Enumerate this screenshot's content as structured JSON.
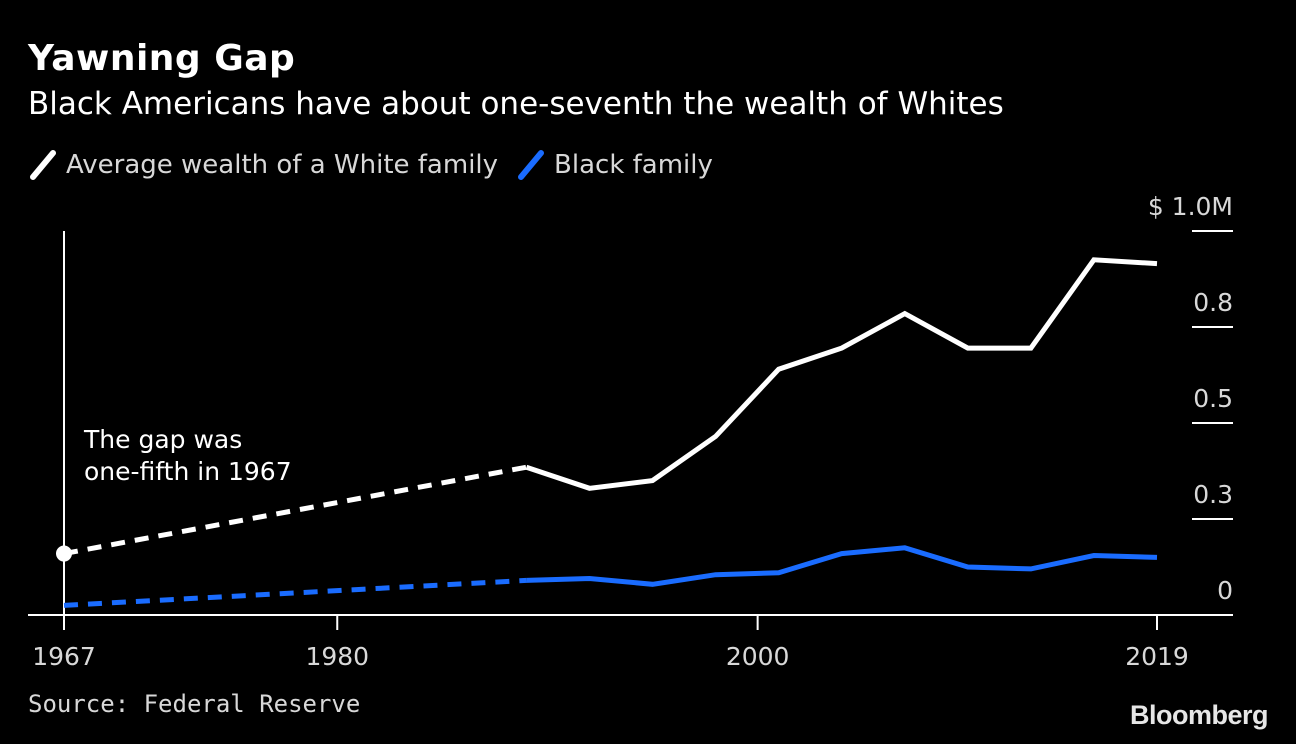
{
  "header": {
    "title": "Yawning Gap",
    "subtitle": "Black Americans have about one-seventh the wealth of Whites"
  },
  "legend": [
    {
      "label": "Average wealth of a White family",
      "color": "#ffffff"
    },
    {
      "label": "Black family",
      "color": "#1a6cff"
    }
  ],
  "footer": {
    "source": "Source: Federal Reserve",
    "brand": "Bloomberg"
  },
  "annotation": {
    "line1": "The gap was",
    "line2": "one-fifth in 1967"
  },
  "chart_data": {
    "type": "line",
    "title": "Yawning Gap",
    "subtitle": "Black Americans have about one-seventh the wealth of Whites",
    "xlabel": "",
    "ylabel": "",
    "xlim": [
      1967,
      2021
    ],
    "ylim": [
      0,
      1.0
    ],
    "x_ticks": [
      {
        "value": 1967,
        "label": "1967"
      },
      {
        "value": 1980,
        "label": "1980"
      },
      {
        "value": 2000,
        "label": "2000"
      },
      {
        "value": 2019,
        "label": "2019"
      }
    ],
    "y_ticks": [
      {
        "value": 0,
        "label": "0"
      },
      {
        "value": 0.25,
        "label": "0.3"
      },
      {
        "value": 0.5,
        "label": "0.5"
      },
      {
        "value": 0.75,
        "label": "0.8"
      },
      {
        "value": 1.0,
        "label": "$ 1.0M"
      }
    ],
    "grid": false,
    "y_axis_side": "right",
    "legend_position": "top-left",
    "series": [
      {
        "name": "Average wealth of a White family",
        "color": "#ffffff",
        "dashed_until": 1989,
        "points": [
          {
            "x": 1967,
            "y": 0.16
          },
          {
            "x": 1989,
            "y": 0.385
          },
          {
            "x": 1992,
            "y": 0.33
          },
          {
            "x": 1995,
            "y": 0.35
          },
          {
            "x": 1998,
            "y": 0.465
          },
          {
            "x": 2001,
            "y": 0.64
          },
          {
            "x": 2004,
            "y": 0.695
          },
          {
            "x": 2007,
            "y": 0.785
          },
          {
            "x": 2010,
            "y": 0.695
          },
          {
            "x": 2013,
            "y": 0.695
          },
          {
            "x": 2016,
            "y": 0.925
          },
          {
            "x": 2019,
            "y": 0.915
          }
        ]
      },
      {
        "name": "Black family",
        "color": "#1a6cff",
        "dashed_until": 1989,
        "points": [
          {
            "x": 1967,
            "y": 0.025
          },
          {
            "x": 1989,
            "y": 0.09
          },
          {
            "x": 1992,
            "y": 0.095
          },
          {
            "x": 1995,
            "y": 0.08
          },
          {
            "x": 1998,
            "y": 0.105
          },
          {
            "x": 2001,
            "y": 0.11
          },
          {
            "x": 2004,
            "y": 0.16
          },
          {
            "x": 2007,
            "y": 0.175
          },
          {
            "x": 2010,
            "y": 0.125
          },
          {
            "x": 2013,
            "y": 0.12
          },
          {
            "x": 2016,
            "y": 0.155
          },
          {
            "x": 2019,
            "y": 0.15
          }
        ]
      }
    ]
  }
}
